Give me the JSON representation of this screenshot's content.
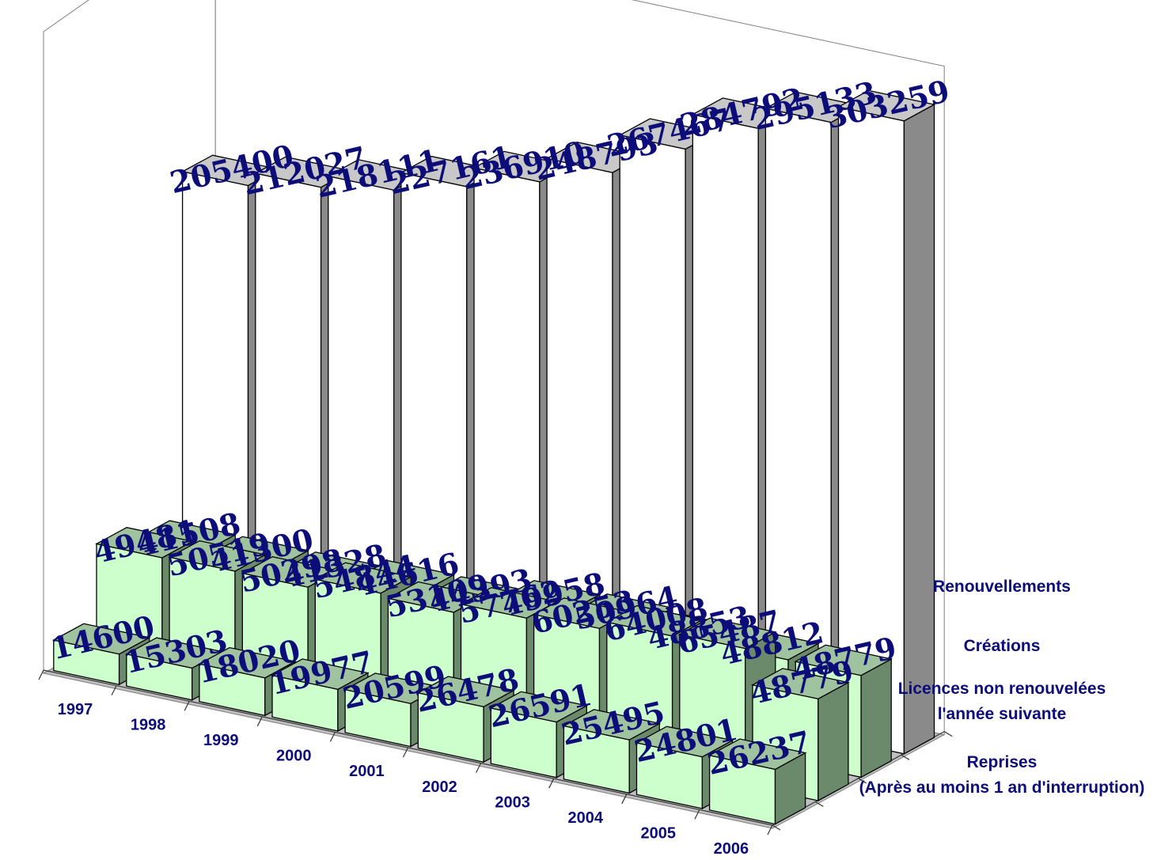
{
  "chart_data": {
    "type": "bar",
    "categories": [
      "1997",
      "1998",
      "1999",
      "2000",
      "2001",
      "2002",
      "2003",
      "2004",
      "2005",
      "2006"
    ],
    "series": [
      {
        "name": "Reprises\n(Après au moins 1 an d'interruption)",
        "values": [
          14600,
          15303,
          18020,
          19977,
          20599,
          26478,
          26591,
          25495,
          24801,
          26237
        ],
        "color": "#ccffcc"
      },
      {
        "name": "Licences non renouvelées\nl'année suivante",
        "values": [
          49481,
          50519,
          50298,
          54844,
          53109,
          57762,
          60253,
          64008,
          65487,
          48779
        ],
        "color": "#ccffcc"
      },
      {
        "name": "Créations",
        "values": [
          41508,
          41300,
          41328,
          44616,
          44393,
          49958,
          50964,
          48853,
          48812,
          48779
        ],
        "color": "#ccffcc"
      },
      {
        "name": "Renouvellements",
        "values": [
          205400,
          212027,
          218111,
          227161,
          236910,
          248793,
          267467,
          284792,
          295133,
          303259
        ],
        "color": "#ffffff"
      }
    ],
    "label_color": "#0d0d7a",
    "wall_color": "#ffffff",
    "floor_color": "#c0c0c0",
    "grid": false,
    "legend": "none"
  }
}
